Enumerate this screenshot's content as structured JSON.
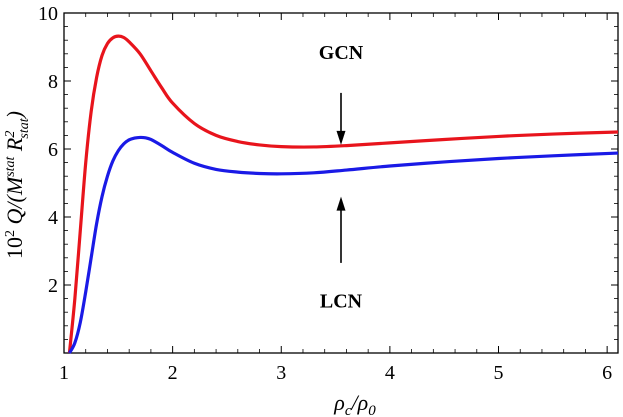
{
  "chart_data": {
    "type": "line",
    "title": "",
    "xlabel": "ρc/ρ0",
    "ylabel": "10² Q/(M^stat R²stat)",
    "xlim": [
      1,
      6.1
    ],
    "ylim": [
      0,
      10
    ],
    "x_ticks": [
      1,
      2,
      3,
      4,
      5,
      6
    ],
    "y_ticks": [
      2,
      4,
      6,
      8,
      10
    ],
    "grid": false,
    "series": [
      {
        "name": "GCN",
        "color": "#e8141c",
        "x": [
          1.05,
          1.1,
          1.15,
          1.2,
          1.25,
          1.3,
          1.35,
          1.4,
          1.45,
          1.5,
          1.55,
          1.6,
          1.7,
          1.8,
          1.9,
          2.0,
          2.2,
          2.4,
          2.6,
          2.8,
          3.0,
          3.3,
          3.6,
          4.0,
          4.5,
          5.0,
          5.5,
          6.1
        ],
        "y": [
          0.0,
          1.6,
          3.6,
          5.6,
          7.1,
          8.1,
          8.75,
          9.1,
          9.27,
          9.32,
          9.28,
          9.15,
          8.8,
          8.3,
          7.8,
          7.35,
          6.75,
          6.4,
          6.22,
          6.12,
          6.07,
          6.06,
          6.1,
          6.18,
          6.28,
          6.37,
          6.44,
          6.5
        ]
      },
      {
        "name": "LCN",
        "color": "#1a1ae6",
        "x": [
          1.05,
          1.1,
          1.15,
          1.2,
          1.25,
          1.3,
          1.35,
          1.4,
          1.45,
          1.5,
          1.55,
          1.6,
          1.65,
          1.7,
          1.75,
          1.8,
          1.9,
          2.0,
          2.2,
          2.4,
          2.6,
          2.8,
          3.0,
          3.3,
          3.6,
          4.0,
          4.5,
          5.0,
          5.5,
          6.1
        ],
        "y": [
          0.0,
          0.3,
          0.9,
          1.8,
          2.8,
          3.8,
          4.6,
          5.2,
          5.65,
          5.95,
          6.15,
          6.27,
          6.32,
          6.34,
          6.33,
          6.28,
          6.1,
          5.9,
          5.58,
          5.4,
          5.32,
          5.28,
          5.27,
          5.3,
          5.38,
          5.5,
          5.62,
          5.72,
          5.8,
          5.88
        ]
      }
    ],
    "annotations": [
      {
        "text": "GCN",
        "x": 3.55,
        "y": 8.85,
        "arrow_from_y": 7.65,
        "arrow_to_y": 6.12
      },
      {
        "text": "LCN",
        "x": 3.55,
        "y": 1.55,
        "arrow_from_y": 2.65,
        "arrow_to_y": 4.6
      }
    ]
  }
}
